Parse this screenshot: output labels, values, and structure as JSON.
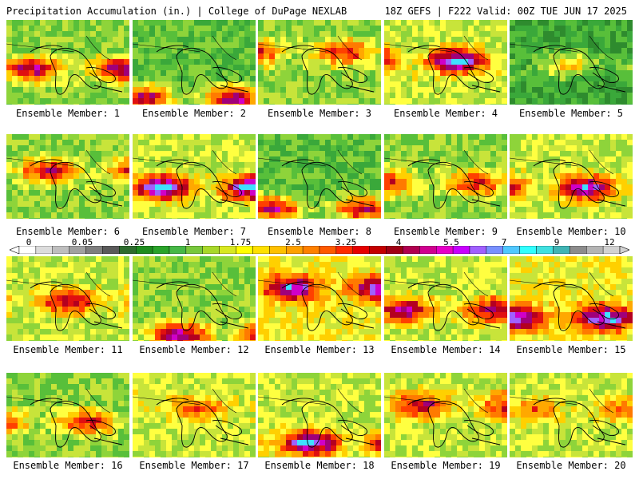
{
  "header": {
    "left": "Precipitation Accumulation (in.) | College of DuPage NEXLAB",
    "right": "18Z GEFS | F222 Valid: 00Z TUE JUN 17 2025"
  },
  "colorbar": {
    "labels": [
      "0",
      "0.05",
      "0.25",
      "1",
      "1.75",
      "2.5",
      "3.25",
      "4",
      "5.5",
      "7",
      "9",
      "12"
    ],
    "colors": [
      "#ffffff",
      "#dcdcdc",
      "#bebebe",
      "#a0a0a0",
      "#7e7e7e",
      "#5a5a5a",
      "#2e6b2e",
      "#1e8c1e",
      "#2aa32a",
      "#46b846",
      "#78c83c",
      "#a8d82a",
      "#d8e820",
      "#ffff00",
      "#ffe000",
      "#ffc000",
      "#ffa000",
      "#ff8000",
      "#ff5a00",
      "#ff2a00",
      "#e60000",
      "#c40000",
      "#a00014",
      "#b00050",
      "#d00090",
      "#e600c8",
      "#c800ff",
      "#a060ff",
      "#7890ff",
      "#50c8ff",
      "#30ffff",
      "#40e0e0",
      "#40b4b4",
      "#8c8c8c",
      "#b4b4b4",
      "#d2d2d2"
    ]
  },
  "panels": [
    {
      "label": "Ensemble Member: 1"
    },
    {
      "label": "Ensemble Member: 2"
    },
    {
      "label": "Ensemble Member: 3"
    },
    {
      "label": "Ensemble Member: 4"
    },
    {
      "label": "Ensemble Member: 5"
    },
    {
      "label": "Ensemble Member: 6"
    },
    {
      "label": "Ensemble Member: 7"
    },
    {
      "label": "Ensemble Member: 8"
    },
    {
      "label": "Ensemble Member: 9"
    },
    {
      "label": "Ensemble Member: 10"
    },
    {
      "label": "Ensemble Member: 11"
    },
    {
      "label": "Ensemble Member: 12"
    },
    {
      "label": "Ensemble Member: 13"
    },
    {
      "label": "Ensemble Member: 14"
    },
    {
      "label": "Ensemble Member: 15"
    },
    {
      "label": "Ensemble Member: 16"
    },
    {
      "label": "Ensemble Member: 17"
    },
    {
      "label": "Ensemble Member: 18"
    },
    {
      "label": "Ensemble Member: 19"
    },
    {
      "label": "Ensemble Member: 20"
    }
  ]
}
